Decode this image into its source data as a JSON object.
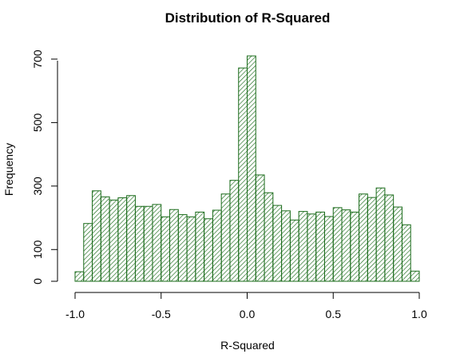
{
  "chart_data": {
    "type": "bar",
    "title": "Distribution of R-Squared",
    "xlabel": "R-Squared",
    "ylabel": "Frequency",
    "bin_edges": [
      -1.0,
      -0.95,
      -0.9,
      -0.85,
      -0.8,
      -0.75,
      -0.7,
      -0.65,
      -0.6,
      -0.55,
      -0.5,
      -0.45,
      -0.4,
      -0.35,
      -0.3,
      -0.25,
      -0.2,
      -0.15,
      -0.1,
      -0.05,
      0.0,
      0.05,
      0.1,
      0.15,
      0.2,
      0.25,
      0.3,
      0.35,
      0.4,
      0.45,
      0.5,
      0.55,
      0.6,
      0.65,
      0.7,
      0.75,
      0.8,
      0.85,
      0.9,
      0.95,
      1.0
    ],
    "values": [
      30,
      182,
      285,
      266,
      256,
      263,
      270,
      236,
      236,
      242,
      203,
      226,
      210,
      203,
      218,
      197,
      224,
      275,
      318,
      672,
      710,
      335,
      279,
      239,
      222,
      193,
      220,
      212,
      218,
      204,
      232,
      225,
      218,
      275,
      264,
      294,
      272,
      234,
      178,
      32
    ],
    "xlim": [
      -1.0,
      1.0
    ],
    "ylim": [
      0,
      710
    ],
    "xticks": [
      -1.0,
      -0.5,
      0.0,
      0.5,
      1.0
    ],
    "xtick_labels": [
      "-1.0",
      "-0.5",
      "0.0",
      "0.5",
      "1.0"
    ],
    "yticks": [
      0,
      100,
      300,
      500,
      700
    ],
    "ytick_labels": [
      "0",
      "100",
      "300",
      "500",
      "700"
    ],
    "grid": false,
    "legend": "none",
    "bar_color": "#1a6b1a",
    "bar_fill": "hatched"
  }
}
